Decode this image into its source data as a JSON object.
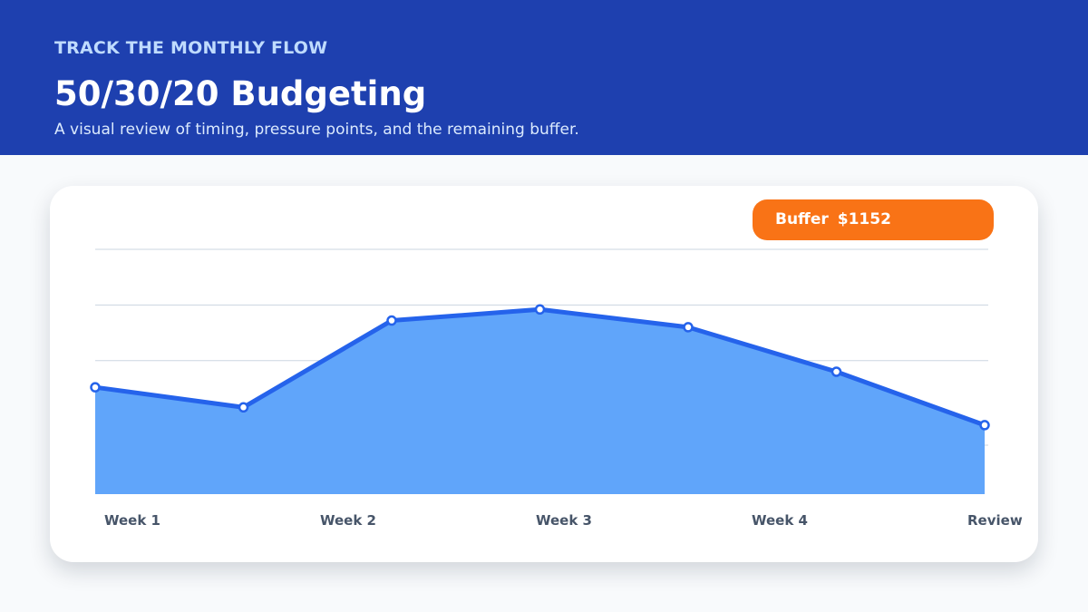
{
  "header": {
    "eyebrow": "TRACK THE MONTHLY FLOW",
    "title": "50/30/20 Budgeting",
    "subtitle": "A visual review of timing, pressure points, and the remaining buffer."
  },
  "badge": {
    "label": "Buffer",
    "value": "$1152"
  },
  "colors": {
    "header_bg": "#1e40af",
    "eyebrow": "#bfdbfe",
    "badge_bg": "#f97316",
    "area_fill": "#60a5fa",
    "line": "#2563eb"
  },
  "chart_data": {
    "type": "area",
    "x_labels": [
      "Week 1",
      "Week 2",
      "Week 3",
      "Week 4",
      "Review"
    ],
    "values": [
      48,
      39,
      78,
      83,
      75,
      55,
      31
    ],
    "ylim": [
      0,
      110
    ],
    "gridlines": [
      22,
      60,
      85,
      110
    ],
    "grid": true,
    "title": "",
    "xlabel": "",
    "ylabel": ""
  }
}
